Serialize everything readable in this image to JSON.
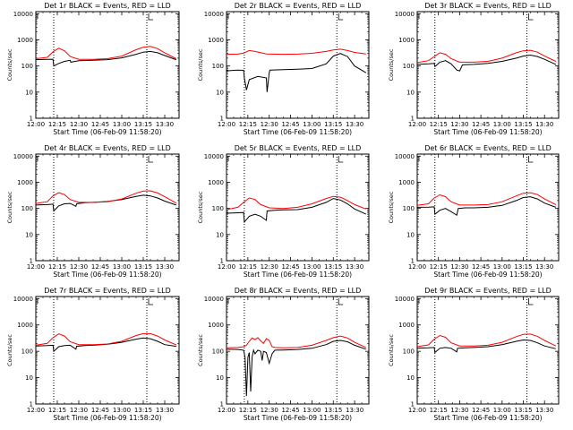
{
  "figure": {
    "xlabel": "Start Time (06-Feb-09 11:58:20)",
    "ylabel": "Counts/sec",
    "series_colors": {
      "events": "#000000",
      "lld": "#ff0000"
    }
  },
  "chart_data": [
    {
      "type": "line",
      "title": "Det 1r BLACK = Events, RED = LLD",
      "x_ticks": [
        "12:00",
        "12:15",
        "12:30",
        "12:45",
        "13:00",
        "13:15",
        "13:30"
      ],
      "y_ticks": [
        "1",
        "10",
        "100",
        "1000",
        "10000"
      ],
      "y_scale": "log",
      "ylim": [
        1,
        12000
      ],
      "xlim_min": [
        0,
        100
      ],
      "vlines_min": [
        12.5,
        77.5
      ],
      "series": [
        {
          "x": [
            0,
            8,
            12,
            12.5,
            16,
            20,
            24,
            24.5,
            30,
            40,
            50,
            60,
            70,
            75,
            80,
            85,
            90,
            98
          ],
          "values": [
            175,
            180,
            182,
            100,
            125,
            150,
            165,
            140,
            160,
            165,
            175,
            205,
            280,
            340,
            360,
            320,
            250,
            175
          ]
        },
        {
          "x": [
            0,
            8,
            12,
            16,
            20,
            24,
            30,
            40,
            50,
            60,
            70,
            75,
            80,
            85,
            90,
            98
          ],
          "values": [
            190,
            215,
            350,
            480,
            380,
            230,
            180,
            180,
            190,
            240,
            420,
            520,
            560,
            460,
            320,
            190
          ]
        }
      ]
    },
    {
      "type": "line",
      "title": "Det 2r BLACK = Events, RED = LLD",
      "x_ticks": [
        "12:00",
        "12:15",
        "12:30",
        "12:45",
        "13:00",
        "13:15",
        "13:30"
      ],
      "y_ticks": [
        "1",
        "10",
        "100",
        "1000",
        "10000"
      ],
      "y_scale": "log",
      "ylim": [
        1,
        12000
      ],
      "xlim_min": [
        0,
        100
      ],
      "vlines_min": [
        12.5,
        77.5
      ],
      "series": [
        {
          "x": [
            0,
            8,
            12,
            12.5,
            14,
            16,
            22,
            28,
            28.5,
            30,
            30.5,
            40,
            50,
            60,
            70,
            75,
            80,
            85,
            90,
            98
          ],
          "values": [
            65,
            70,
            68,
            35,
            12,
            30,
            40,
            35,
            10,
            55,
            70,
            72,
            75,
            80,
            120,
            240,
            300,
            230,
            100,
            55
          ]
        },
        {
          "x": [
            0,
            8,
            12,
            16,
            20,
            28,
            40,
            50,
            60,
            70,
            75,
            80,
            85,
            90,
            98
          ],
          "values": [
            280,
            285,
            310,
            390,
            360,
            290,
            280,
            285,
            305,
            360,
            410,
            440,
            390,
            330,
            290
          ]
        }
      ]
    },
    {
      "type": "line",
      "title": "Det 3r BLACK = Events, RED = LLD",
      "x_ticks": [
        "12:00",
        "12:15",
        "12:30",
        "12:45",
        "13:00",
        "13:15",
        "13:30"
      ],
      "y_ticks": [
        "1",
        "10",
        "100",
        "1000",
        "10000"
      ],
      "y_scale": "log",
      "ylim": [
        1,
        12000
      ],
      "xlim_min": [
        0,
        100
      ],
      "vlines_min": [
        12.5,
        77.5
      ],
      "series": [
        {
          "x": [
            0,
            8,
            12,
            12.5,
            16,
            20,
            24,
            28,
            30,
            32,
            40,
            50,
            60,
            70,
            75,
            80,
            85,
            90,
            98
          ],
          "values": [
            115,
            120,
            125,
            95,
            140,
            160,
            120,
            70,
            65,
            110,
            115,
            125,
            150,
            200,
            240,
            260,
            230,
            180,
            115
          ]
        },
        {
          "x": [
            0,
            8,
            12,
            16,
            20,
            24,
            30,
            40,
            50,
            60,
            70,
            75,
            80,
            85,
            90,
            98
          ],
          "values": [
            135,
            160,
            230,
            320,
            280,
            190,
            140,
            140,
            150,
            200,
            320,
            380,
            400,
            340,
            240,
            150
          ]
        }
      ]
    },
    {
      "type": "line",
      "title": "Det 4r BLACK = Events, RED = LLD",
      "x_ticks": [
        "12:00",
        "12:15",
        "12:30",
        "12:45",
        "13:00",
        "13:15",
        "13:30"
      ],
      "y_ticks": [
        "1",
        "10",
        "100",
        "1000",
        "10000"
      ],
      "y_scale": "log",
      "ylim": [
        1,
        12000
      ],
      "xlim_min": [
        0,
        100
      ],
      "vlines_min": [
        12.5,
        77.5
      ],
      "series": [
        {
          "x": [
            0,
            8,
            12,
            12.5,
            16,
            20,
            24,
            28,
            28.5,
            34,
            40,
            50,
            60,
            70,
            75,
            80,
            85,
            90,
            98
          ],
          "values": [
            135,
            140,
            145,
            80,
            125,
            150,
            155,
            120,
            150,
            165,
            170,
            185,
            220,
            290,
            320,
            300,
            250,
            190,
            135
          ]
        },
        {
          "x": [
            0,
            8,
            12,
            16,
            20,
            24,
            30,
            40,
            50,
            60,
            70,
            75,
            80,
            85,
            90,
            98
          ],
          "values": [
            155,
            180,
            300,
            400,
            340,
            220,
            170,
            170,
            180,
            230,
            380,
            460,
            470,
            390,
            280,
            160
          ]
        }
      ]
    },
    {
      "type": "line",
      "title": "Det 5r BLACK = Events, RED = LLD",
      "x_ticks": [
        "12:00",
        "12:15",
        "12:30",
        "12:45",
        "13:00",
        "13:15",
        "13:30"
      ],
      "y_ticks": [
        "1",
        "10",
        "100",
        "1000",
        "10000"
      ],
      "y_scale": "log",
      "ylim": [
        1,
        12000
      ],
      "xlim_min": [
        0,
        100
      ],
      "vlines_min": [
        12.5,
        77.5
      ],
      "series": [
        {
          "x": [
            0,
            8,
            12,
            12.5,
            16,
            20,
            24,
            28,
            28.5,
            34,
            40,
            50,
            60,
            70,
            75,
            80,
            85,
            90,
            98
          ],
          "values": [
            65,
            68,
            70,
            30,
            50,
            60,
            50,
            35,
            80,
            85,
            88,
            90,
            110,
            170,
            240,
            210,
            150,
            95,
            60
          ]
        },
        {
          "x": [
            0,
            8,
            12,
            16,
            20,
            24,
            30,
            40,
            50,
            60,
            70,
            75,
            80,
            85,
            90,
            98
          ],
          "values": [
            90,
            110,
            170,
            250,
            220,
            140,
            105,
            100,
            110,
            150,
            240,
            290,
            270,
            200,
            140,
            95
          ]
        }
      ]
    },
    {
      "type": "line",
      "title": "Det 6r BLACK = Events, RED = LLD",
      "x_ticks": [
        "12:00",
        "12:15",
        "12:30",
        "12:45",
        "13:00",
        "13:15",
        "13:30"
      ],
      "y_ticks": [
        "1",
        "10",
        "100",
        "1000",
        "10000"
      ],
      "y_scale": "log",
      "ylim": [
        1,
        12000
      ],
      "xlim_min": [
        0,
        100
      ],
      "vlines_min": [
        12.5,
        77.5
      ],
      "series": [
        {
          "x": [
            0,
            8,
            12,
            12.5,
            16,
            20,
            24,
            28,
            29,
            34,
            40,
            50,
            60,
            70,
            75,
            80,
            85,
            90,
            98
          ],
          "values": [
            110,
            112,
            115,
            60,
            85,
            100,
            75,
            55,
            100,
            105,
            105,
            110,
            130,
            200,
            260,
            280,
            230,
            160,
            110
          ]
        },
        {
          "x": [
            0,
            8,
            12,
            16,
            20,
            24,
            30,
            40,
            50,
            60,
            70,
            75,
            80,
            85,
            90,
            98
          ],
          "values": [
            130,
            150,
            250,
            330,
            280,
            180,
            135,
            135,
            140,
            180,
            300,
            380,
            400,
            340,
            230,
            140
          ]
        }
      ]
    },
    {
      "type": "line",
      "title": "Det 7r BLACK = Events, RED = LLD",
      "x_ticks": [
        "12:00",
        "12:15",
        "12:30",
        "12:45",
        "13:00",
        "13:15",
        "13:30"
      ],
      "y_ticks": [
        "1",
        "10",
        "100",
        "1000",
        "10000"
      ],
      "y_scale": "log",
      "ylim": [
        1,
        12000
      ],
      "xlim_min": [
        0,
        100
      ],
      "vlines_min": [
        12.5,
        77.5
      ],
      "series": [
        {
          "x": [
            0,
            8,
            12,
            12.5,
            16,
            20,
            24,
            28,
            28.5,
            34,
            40,
            50,
            60,
            70,
            75,
            80,
            85,
            90,
            98
          ],
          "values": [
            160,
            165,
            170,
            100,
            150,
            165,
            170,
            120,
            155,
            165,
            170,
            185,
            220,
            290,
            320,
            300,
            240,
            180,
            155
          ]
        },
        {
          "x": [
            0,
            8,
            12,
            16,
            20,
            24,
            30,
            40,
            50,
            60,
            70,
            75,
            80,
            85,
            90,
            98
          ],
          "values": [
            170,
            200,
            330,
            460,
            380,
            230,
            180,
            180,
            190,
            240,
            400,
            470,
            470,
            380,
            270,
            175
          ]
        }
      ]
    },
    {
      "type": "line",
      "title": "Det 8r BLACK = Events, RED = LLD",
      "x_ticks": [
        "12:00",
        "12:15",
        "12:30",
        "12:45",
        "13:00",
        "13:15",
        "13:30"
      ],
      "y_ticks": [
        "1",
        "10",
        "100",
        "1000",
        "10000"
      ],
      "y_scale": "log",
      "ylim": [
        1,
        12000
      ],
      "xlim_min": [
        0,
        100
      ],
      "vlines_min": [
        12.5,
        77.5
      ],
      "series": [
        {
          "x": [
            0,
            8,
            12,
            13,
            14,
            15,
            16,
            17,
            18,
            19,
            20,
            22,
            24,
            25,
            26,
            28,
            30,
            32,
            34,
            40,
            50,
            60,
            70,
            75,
            80,
            85,
            90,
            98
          ],
          "values": [
            120,
            118,
            110,
            60,
            2,
            60,
            90,
            3,
            60,
            110,
            80,
            110,
            100,
            45,
            100,
            90,
            35,
            80,
            110,
            112,
            118,
            130,
            180,
            240,
            260,
            230,
            170,
            120
          ]
        },
        {
          "x": [
            0,
            8,
            12,
            14,
            16,
            18,
            20,
            22,
            24,
            26,
            28,
            30,
            32,
            34,
            40,
            50,
            60,
            70,
            75,
            80,
            85,
            90,
            98
          ],
          "values": [
            135,
            140,
            150,
            170,
            240,
            320,
            280,
            330,
            250,
            200,
            300,
            260,
            150,
            140,
            135,
            140,
            170,
            260,
            330,
            380,
            320,
            220,
            140
          ]
        }
      ]
    },
    {
      "type": "line",
      "title": "Det 9r BLACK = Events, RED = LLD",
      "x_ticks": [
        "12:00",
        "12:15",
        "12:30",
        "12:45",
        "13:00",
        "13:15",
        "13:30"
      ],
      "y_ticks": [
        "1",
        "10",
        "100",
        "1000",
        "10000"
      ],
      "y_scale": "log",
      "ylim": [
        1,
        12000
      ],
      "xlim_min": [
        0,
        100
      ],
      "vlines_min": [
        12.5,
        77.5
      ],
      "series": [
        {
          "x": [
            0,
            8,
            12,
            12.5,
            16,
            20,
            24,
            28,
            28.5,
            34,
            40,
            50,
            60,
            70,
            75,
            80,
            85,
            90,
            98
          ],
          "values": [
            130,
            135,
            140,
            90,
            130,
            140,
            130,
            95,
            130,
            135,
            140,
            150,
            180,
            240,
            270,
            260,
            210,
            160,
            125
          ]
        },
        {
          "x": [
            0,
            8,
            12,
            16,
            20,
            24,
            30,
            40,
            50,
            60,
            70,
            75,
            80,
            85,
            90,
            98
          ],
          "values": [
            150,
            175,
            290,
            400,
            340,
            210,
            160,
            160,
            170,
            220,
            360,
            440,
            450,
            370,
            260,
            160
          ]
        }
      ]
    }
  ]
}
